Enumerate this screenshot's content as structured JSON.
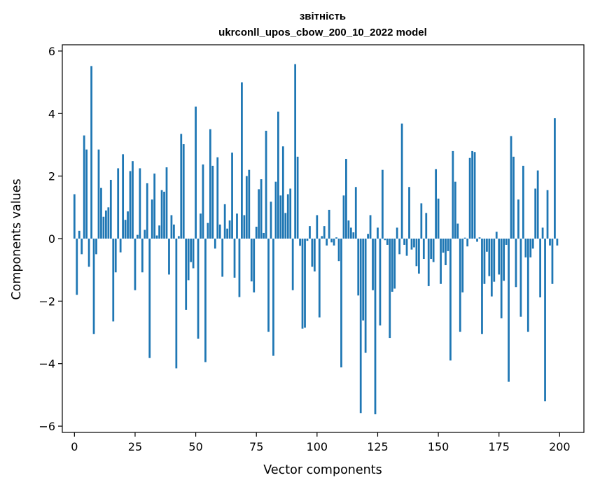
{
  "chart_data": {
    "type": "bar",
    "title": "звітність",
    "subtitle": "ukrconll_upos_cbow_200_10_2022 model",
    "xlabel": "Vector components",
    "ylabel": "Components values",
    "xlim": [
      -5,
      210
    ],
    "ylim": [
      -6.2,
      6.2
    ],
    "x_ticks": [
      0,
      25,
      50,
      75,
      100,
      125,
      150,
      175,
      200
    ],
    "y_ticks": [
      -6,
      -4,
      -2,
      0,
      2,
      4,
      6
    ],
    "y_tick_labels": [
      "−6",
      "−4",
      "−2",
      "0",
      "2",
      "4",
      "6"
    ],
    "bar_color": "#1f77b4",
    "values": [
      1.42,
      -1.8,
      0.25,
      -0.5,
      3.3,
      2.85,
      -0.9,
      5.52,
      -3.05,
      -0.5,
      2.85,
      1.62,
      0.7,
      0.9,
      1.0,
      1.88,
      -2.65,
      -1.08,
      2.25,
      -0.44,
      2.7,
      0.6,
      0.87,
      2.16,
      2.48,
      -1.65,
      0.12,
      2.25,
      -1.08,
      0.28,
      1.77,
      -3.82,
      1.25,
      2.08,
      0.1,
      0.42,
      1.55,
      1.5,
      2.28,
      -1.15,
      0.75,
      0.45,
      -4.15,
      0.08,
      3.35,
      3.02,
      -2.28,
      -1.33,
      -0.75,
      -0.95,
      4.22,
      -3.2,
      0.8,
      2.37,
      -3.95,
      0.5,
      3.5,
      2.33,
      -0.32,
      2.6,
      0.45,
      -1.22,
      1.1,
      0.32,
      0.58,
      2.75,
      -1.25,
      0.8,
      -1.87,
      5.0,
      0.75,
      2.0,
      2.2,
      -1.37,
      -1.72,
      0.38,
      1.58,
      1.9,
      0.18,
      3.45,
      -2.98,
      1.18,
      -3.75,
      1.82,
      4.06,
      1.38,
      2.95,
      0.82,
      1.42,
      1.6,
      -1.65,
      5.58,
      2.62,
      -0.23,
      -2.88,
      -2.85,
      -0.07,
      0.4,
      -0.9,
      -1.05,
      0.75,
      -2.52,
      0.08,
      0.4,
      -0.22,
      0.92,
      -0.12,
      -0.22,
      0.04,
      -0.72,
      -4.12,
      1.38,
      2.55,
      0.58,
      0.35,
      0.2,
      1.65,
      -1.82,
      -5.58,
      -2.62,
      -3.65,
      0.15,
      0.75,
      -1.65,
      -5.62,
      0.35,
      -2.78,
      2.2,
      -0.05,
      -0.2,
      -3.18,
      -1.7,
      -1.6,
      0.35,
      -0.5,
      3.68,
      -0.2,
      -0.55,
      1.65,
      -0.35,
      -0.28,
      -0.88,
      -1.12,
      1.13,
      -0.65,
      0.82,
      -1.52,
      -0.65,
      -0.75,
      2.22,
      1.28,
      -1.45,
      -0.45,
      -0.85,
      -0.4,
      -3.9,
      2.8,
      1.82,
      0.48,
      -2.98,
      -1.72,
      0.03,
      -0.25,
      2.58,
      2.8,
      2.77,
      -0.1,
      0.04,
      -3.05,
      -1.45,
      -0.42,
      -1.2,
      -1.85,
      -1.38,
      0.22,
      -1.15,
      -2.55,
      -1.35,
      -0.2,
      -4.58,
      3.28,
      2.62,
      -1.55,
      1.25,
      -2.5,
      2.33,
      -0.6,
      -2.98,
      -0.6,
      -0.32,
      1.6,
      2.18,
      -1.88,
      0.35,
      -5.2,
      1.55,
      -0.22,
      -1.45,
      3.85,
      -0.22
    ]
  }
}
